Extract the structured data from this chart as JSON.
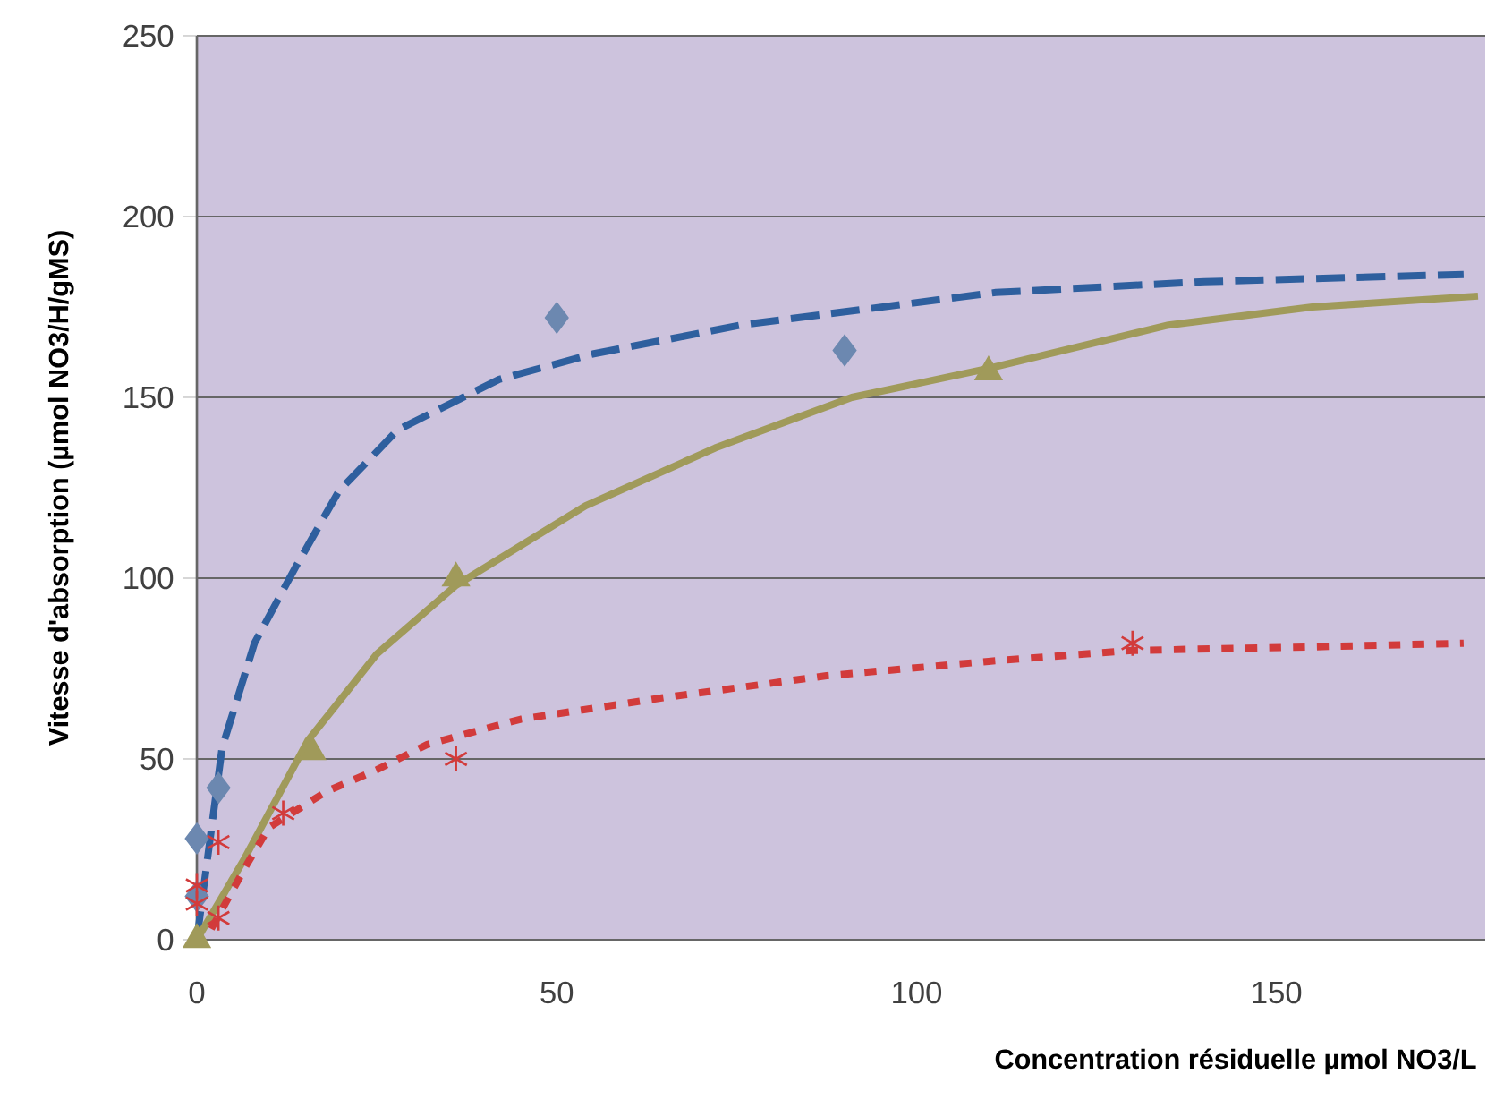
{
  "chart_data": {
    "type": "scatter",
    "xlabel": "Concentration résiduelle µmol NO3/L",
    "ylabel": "Vitesse d'absorption (µmol NO3/H/gMS)",
    "xlim": [
      0,
      179
    ],
    "ylim": [
      0,
      250
    ],
    "xticks": [
      0,
      50,
      100,
      150
    ],
    "yticks": [
      0,
      50,
      100,
      150,
      200,
      250
    ],
    "grid": "y",
    "series": [
      {
        "marker": "diamond",
        "color": "#6c88b0",
        "x": [
          0,
          0,
          3,
          50,
          90
        ],
        "values": [
          28,
          12,
          42,
          172,
          163
        ]
      },
      {
        "marker": "triangle",
        "color": "#a09a5a",
        "x": [
          0,
          16,
          36,
          110
        ],
        "values": [
          0,
          52,
          100,
          157
        ]
      },
      {
        "marker": "cross",
        "color": "#d23b3b",
        "x": [
          0,
          0,
          3,
          3,
          12,
          36,
          130
        ],
        "values": [
          15,
          10,
          27,
          6,
          35,
          50,
          82
        ]
      },
      {
        "type": "line",
        "line_style": "dashed",
        "color": "#2e5f9e",
        "x": [
          0,
          3.5,
          8,
          13.7,
          19.7,
          27.9,
          42,
          55,
          75.6,
          111,
          140,
          176
        ],
        "values": [
          0,
          53,
          82,
          103,
          124,
          141,
          155,
          162,
          170,
          179,
          182,
          184
        ]
      },
      {
        "type": "line",
        "line_style": "solid",
        "color": "#a09a5a",
        "x": [
          0,
          6.5,
          15.4,
          25,
          36,
          54,
          72,
          91,
          110,
          135,
          155,
          178
        ],
        "values": [
          0,
          22,
          55,
          79,
          98,
          120,
          136,
          150,
          158,
          170,
          175,
          178
        ]
      },
      {
        "type": "line",
        "line_style": "dotted",
        "color": "#d23b3b",
        "x": [
          2,
          7,
          10,
          18,
          25,
          32,
          45,
          65,
          87.5,
          110,
          130,
          155,
          176
        ],
        "values": [
          3,
          21,
          31,
          41,
          47,
          54,
          61,
          67,
          73,
          77,
          80,
          81,
          82
        ]
      }
    ]
  }
}
